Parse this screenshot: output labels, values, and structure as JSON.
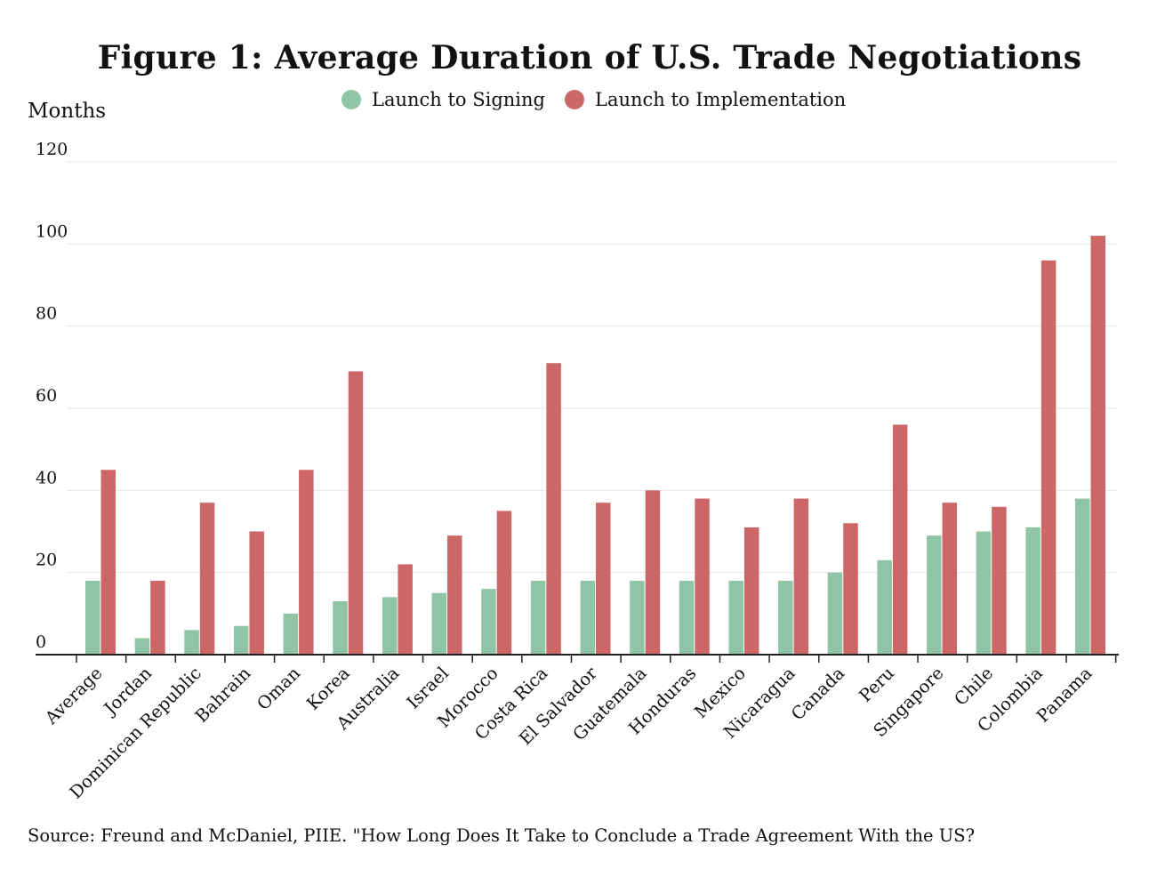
{
  "chart_data": {
    "type": "bar",
    "title": "Figure 1: Average Duration of U.S. Trade Negotiations",
    "ylabel": "Months",
    "xlabel": "",
    "ylim": [
      0,
      120
    ],
    "yticks": [
      0,
      20,
      40,
      60,
      80,
      100,
      120
    ],
    "grid": true,
    "legend_position": "top-center",
    "categories": [
      "Average",
      "Jordan",
      "Dominican Republic",
      "Bahrain",
      "Oman",
      "Korea",
      "Australia",
      "Israel",
      "Morocco",
      "Costa Rica",
      "El Salvador",
      "Guatemala",
      "Honduras",
      "Mexico",
      "Nicaragua",
      "Canada",
      "Peru",
      "Singapore",
      "Chile",
      "Colombia",
      "Panama"
    ],
    "series": [
      {
        "name": "Launch to Signing",
        "color": "#8fc5a6",
        "values": [
          18,
          4,
          6,
          7,
          10,
          13,
          14,
          15,
          16,
          18,
          18,
          18,
          18,
          18,
          18,
          20,
          23,
          29,
          30,
          31,
          38
        ]
      },
      {
        "name": "Launch to Implementation",
        "color": "#cd6767",
        "values": [
          45,
          18,
          37,
          30,
          45,
          69,
          22,
          29,
          35,
          71,
          37,
          40,
          38,
          31,
          38,
          32,
          56,
          37,
          36,
          96,
          102
        ]
      }
    ],
    "source": "Source: Freund and McDaniel, PIIE. \"How Long Does It Take to Conclude a Trade Agreement With the US?"
  }
}
